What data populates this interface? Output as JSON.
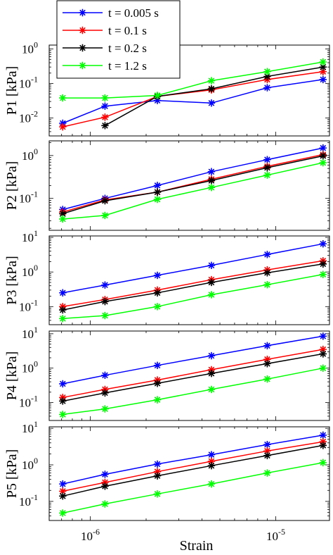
{
  "chart_data": {
    "type": "line",
    "x_scale": "log",
    "y_scale": "log",
    "x": [
      7.1e-07,
      1.2e-06,
      2.3e-06,
      4.5e-06,
      9e-06,
      1.8e-05
    ],
    "xlim": [
      6e-07,
      1.95e-05
    ],
    "xlabel": "Strain",
    "x_ticks": [
      {
        "value": 1e-06,
        "base": "10",
        "exp": "-6"
      },
      {
        "value": 1e-05,
        "base": "10",
        "exp": "-5"
      }
    ],
    "legend": {
      "position": "top-left",
      "entries": [
        {
          "label": "t = 0.005 s",
          "color": "#0000ff"
        },
        {
          "label": "t = 0.1 s",
          "color": "#ff0000"
        },
        {
          "label": "t = 0.2 s",
          "color": "#000000"
        },
        {
          "label": "t = 1.2 s",
          "color": "#00ff00"
        }
      ]
    },
    "marker": "asterisk",
    "grid": false,
    "panels": [
      {
        "ylabel": "P1 [kPa]",
        "ylim": [
          0.003,
          1.3
        ],
        "y_ticks": [
          {
            "value": 0.01,
            "base": "10",
            "exp": "-2"
          },
          {
            "value": 0.1,
            "base": "10",
            "exp": "-1"
          },
          {
            "value": 1,
            "base": "10",
            "exp": "0"
          }
        ],
        "series": [
          {
            "name": "t = 0.005 s",
            "values": [
              0.007,
              0.022,
              0.032,
              0.027,
              0.075,
              0.13
            ]
          },
          {
            "name": "t = 0.1 s",
            "values": [
              0.0055,
              0.0105,
              0.042,
              0.065,
              0.13,
              0.22
            ]
          },
          {
            "name": "t = 0.2 s",
            "values": [
              null,
              0.006,
              0.042,
              0.07,
              0.16,
              0.3
            ]
          },
          {
            "name": "t = 1.2 s",
            "values": [
              0.038,
              0.038,
              0.045,
              0.12,
              0.22,
              0.42
            ]
          }
        ]
      },
      {
        "ylabel": "P2 [kPa]",
        "ylim": [
          0.018,
          2.2
        ],
        "y_ticks": [
          {
            "value": 0.1,
            "base": "10",
            "exp": "-1"
          },
          {
            "value": 1,
            "base": "10",
            "exp": "0"
          }
        ],
        "series": [
          {
            "name": "t = 0.005 s",
            "values": [
              0.055,
              0.1,
              0.2,
              0.42,
              0.8,
              1.5
            ]
          },
          {
            "name": "t = 0.1 s",
            "values": [
              0.048,
              0.092,
              0.14,
              0.28,
              0.56,
              1.05
            ]
          },
          {
            "name": "t = 0.2 s",
            "values": [
              0.044,
              0.088,
              0.14,
              0.26,
              0.52,
              0.98
            ]
          },
          {
            "name": "t = 1.2 s",
            "values": [
              0.033,
              0.04,
              0.095,
              0.18,
              0.35,
              0.68
            ]
          }
        ]
      },
      {
        "ylabel": "P3 [kPa]",
        "ylim": [
          0.03,
          11
        ],
        "y_ticks": [
          {
            "value": 0.1,
            "base": "10",
            "exp": "-1"
          },
          {
            "value": 1,
            "base": "10",
            "exp": "0"
          },
          {
            "value": 10,
            "base": "10",
            "exp": "1"
          }
        ],
        "series": [
          {
            "name": "t = 0.005 s",
            "values": [
              0.25,
              0.42,
              0.8,
              1.55,
              3.2,
              6.5
            ]
          },
          {
            "name": "t = 0.1 s",
            "values": [
              0.1,
              0.16,
              0.3,
              0.6,
              1.15,
              2.1
            ]
          },
          {
            "name": "t = 0.2 s",
            "values": [
              0.08,
              0.14,
              0.25,
              0.5,
              0.95,
              1.7
            ]
          },
          {
            "name": "t = 1.2 s",
            "values": [
              0.045,
              0.055,
              0.1,
              0.22,
              0.43,
              0.85
            ]
          }
        ]
      },
      {
        "ylabel": "P4 [kPa]",
        "ylim": [
          0.03,
          12
        ],
        "y_ticks": [
          {
            "value": 0.1,
            "base": "10",
            "exp": "-1"
          },
          {
            "value": 1,
            "base": "10",
            "exp": "0"
          },
          {
            "value": 10,
            "base": "10",
            "exp": "1"
          }
        ],
        "series": [
          {
            "name": "t = 0.005 s",
            "values": [
              0.35,
              0.62,
              1.2,
              2.3,
              4.5,
              8.5
            ]
          },
          {
            "name": "t = 0.1 s",
            "values": [
              0.14,
              0.24,
              0.45,
              0.9,
              1.8,
              3.5
            ]
          },
          {
            "name": "t = 0.2 s",
            "values": [
              0.11,
              0.19,
              0.36,
              0.7,
              1.35,
              2.6
            ]
          },
          {
            "name": "t = 1.2 s",
            "values": [
              0.045,
              0.065,
              0.12,
              0.24,
              0.48,
              1.0
            ]
          }
        ]
      },
      {
        "ylabel": "P5 [kPa]",
        "ylim": [
          0.03,
          11
        ],
        "y_ticks": [
          {
            "value": 0.1,
            "base": "10",
            "exp": "-1"
          },
          {
            "value": 1,
            "base": "10",
            "exp": "0"
          },
          {
            "value": 10,
            "base": "10",
            "exp": "1"
          }
        ],
        "series": [
          {
            "name": "t = 0.005 s",
            "values": [
              0.3,
              0.55,
              1.05,
              1.9,
              3.6,
              6.5
            ]
          },
          {
            "name": "t = 0.1 s",
            "values": [
              0.19,
              0.33,
              0.65,
              1.25,
              2.4,
              4.3
            ]
          },
          {
            "name": "t = 0.2 s",
            "values": [
              0.14,
              0.26,
              0.5,
              0.95,
              1.8,
              3.4
            ]
          },
          {
            "name": "t = 1.2 s",
            "values": [
              0.048,
              0.085,
              0.16,
              0.3,
              0.6,
              1.15
            ]
          }
        ]
      }
    ]
  }
}
